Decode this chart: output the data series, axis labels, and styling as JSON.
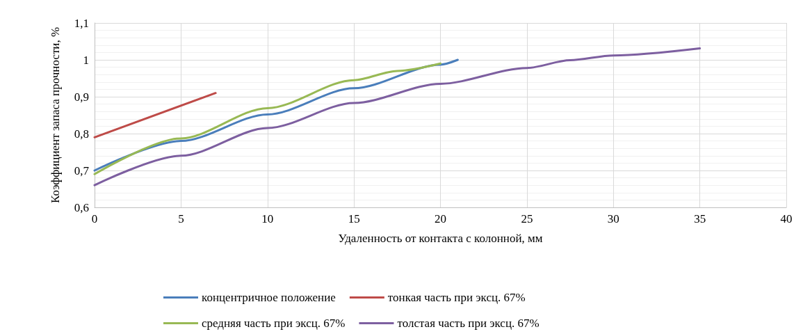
{
  "chart_data": {
    "type": "line",
    "xlabel": "Удаленность от контакта с колонной, мм",
    "ylabel": "Коэффициент запаса прочности, %",
    "xlim": [
      0,
      40
    ],
    "xticks": [
      0,
      5,
      10,
      15,
      20,
      25,
      30,
      35,
      40
    ],
    "ylim": [
      0.6,
      1.1
    ],
    "yticks": [
      {
        "value": 0.6,
        "label": "0,6"
      },
      {
        "value": 0.7,
        "label": "0,7"
      },
      {
        "value": 0.8,
        "label": "0,8"
      },
      {
        "value": 0.9,
        "label": "0,9"
      },
      {
        "value": 1,
        "label": "1"
      },
      {
        "value": 1.1,
        "label": "1,1"
      }
    ],
    "grid": true,
    "legend": "bottom",
    "marker": "none",
    "line_style": "solid",
    "series": [
      {
        "name": "концентричное положение",
        "color": "#4a7ebb",
        "x": [
          0,
          5,
          10,
          15,
          20,
          21
        ],
        "values": [
          0.7,
          0.78,
          0.852,
          0.923,
          0.987,
          1.0
        ]
      },
      {
        "name": "тонкая часть при эксц. 67%",
        "color": "#be4b48",
        "x": [
          0,
          7
        ],
        "values": [
          0.79,
          0.91
        ]
      },
      {
        "name": "средняя часть при эксц. 67%",
        "color": "#98b954",
        "x": [
          0,
          5,
          10,
          15,
          17.5,
          20
        ],
        "values": [
          0.69,
          0.787,
          0.869,
          0.945,
          0.97,
          0.99
        ]
      },
      {
        "name": "толстая часть при эксц. 67%",
        "color": "#7d5fa0",
        "x": [
          0,
          5,
          10,
          15,
          20,
          25,
          27.5,
          30,
          35
        ],
        "values": [
          0.66,
          0.74,
          0.815,
          0.883,
          0.935,
          0.978,
          0.999,
          1.012,
          1.031
        ]
      }
    ]
  }
}
